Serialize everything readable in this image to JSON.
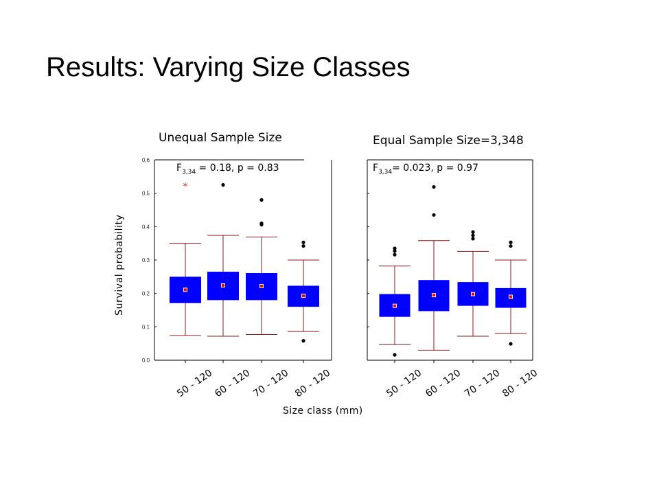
{
  "slide": {
    "title": "Results: Varying Size Classes"
  },
  "axis": {
    "ylabel": "Survival probability",
    "xlabel": "Size class (mm)"
  },
  "chart_data": [
    {
      "type": "boxplot",
      "title": "Unequal Sample Size",
      "annotation": {
        "prefix": "F",
        "sub": "3,34",
        "text": " = 0.18, p = 0.83"
      },
      "ylabel": "Survival probability",
      "xlabel": "Size class (mm)",
      "ylim": [
        0,
        0.6
      ],
      "yticks": [
        "0.0",
        "0.1",
        "0.2",
        "0.3",
        "0.4",
        "0.5",
        "0.6"
      ],
      "categories": [
        "50 - 120",
        "60 - 120",
        "70 - 120",
        "80 - 120"
      ],
      "boxes": [
        {
          "whisker_low": 0.074,
          "q1": 0.171,
          "median": 0.211,
          "q3": 0.25,
          "whisker_high": 0.35,
          "outliers": [],
          "extremes": [
            0.523
          ]
        },
        {
          "whisker_low": 0.072,
          "q1": 0.18,
          "median": 0.224,
          "q3": 0.265,
          "whisker_high": 0.374,
          "outliers": [
            0.525
          ],
          "extremes": []
        },
        {
          "whisker_low": 0.077,
          "q1": 0.18,
          "median": 0.222,
          "q3": 0.261,
          "whisker_high": 0.369,
          "outliers": [
            0.48,
            0.41,
            0.406
          ],
          "extremes": []
        },
        {
          "whisker_low": 0.086,
          "q1": 0.16,
          "median": 0.193,
          "q3": 0.223,
          "whisker_high": 0.3,
          "outliers": [
            0.353,
            0.342,
            0.058
          ],
          "extremes": []
        }
      ]
    },
    {
      "type": "boxplot",
      "title": "Equal Sample Size=3,348",
      "annotation": {
        "prefix": "F",
        "sub": "3,34",
        "text": "= 0.023, p = 0.97"
      },
      "ylim": [
        0,
        0.6
      ],
      "categories": [
        "50 - 120",
        "60 - 120",
        "70 - 120",
        "80 - 120"
      ],
      "boxes": [
        {
          "whisker_low": 0.047,
          "q1": 0.13,
          "median": 0.163,
          "q3": 0.198,
          "whisker_high": 0.282,
          "outliers": [
            0.335,
            0.327,
            0.316,
            0.016
          ],
          "extremes": []
        },
        {
          "whisker_low": 0.03,
          "q1": 0.147,
          "median": 0.195,
          "q3": 0.24,
          "whisker_high": 0.358,
          "outliers": [
            0.519,
            0.435
          ],
          "extremes": []
        },
        {
          "whisker_low": 0.072,
          "q1": 0.163,
          "median": 0.198,
          "q3": 0.234,
          "whisker_high": 0.326,
          "outliers": [
            0.384,
            0.374,
            0.364
          ],
          "extremes": []
        },
        {
          "whisker_low": 0.08,
          "q1": 0.157,
          "median": 0.19,
          "q3": 0.216,
          "whisker_high": 0.3,
          "outliers": [
            0.353,
            0.342,
            0.049
          ],
          "extremes": []
        }
      ]
    }
  ],
  "colors": {
    "box_fill": "#0000ff",
    "whisker": "#8b1a1a",
    "median_marker": "#ff0000",
    "extreme": "#c0392b",
    "axis": "#000000"
  }
}
